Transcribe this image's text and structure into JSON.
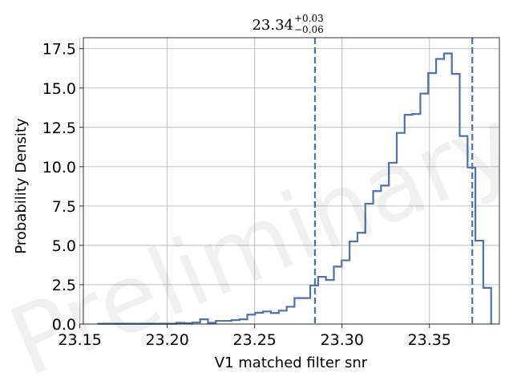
{
  "chart_data": {
    "type": "histogram",
    "title": {
      "value": "23.34",
      "upper": "+0.03",
      "lower": "−0.06"
    },
    "xlabel": "V1 matched filter snr",
    "ylabel": "Probability Density",
    "xlim": [
      23.152,
      23.39
    ],
    "ylim": [
      0,
      18.2
    ],
    "xticks": [
      "23.15",
      "23.20",
      "23.25",
      "23.30",
      "23.35"
    ],
    "yticks": [
      "0.0",
      "2.5",
      "5.0",
      "7.5",
      "10.0",
      "12.5",
      "15.0",
      "17.5"
    ],
    "grid": true,
    "line_color": "#4c72b0",
    "watermark": "Preliminary",
    "vlines": [
      23.2845,
      23.3745
    ],
    "bin_edges": [
      23.1605,
      23.2052,
      23.2098,
      23.2143,
      23.2188,
      23.2233,
      23.2278,
      23.2323,
      23.2368,
      23.2413,
      23.2458,
      23.2503,
      23.2548,
      23.2593,
      23.2638,
      23.2683,
      23.2728,
      23.2773,
      23.2818,
      23.2863,
      23.2908,
      23.2953,
      23.2998,
      23.3043,
      23.3088,
      23.3133,
      23.3178,
      23.3223,
      23.3268,
      23.3313,
      23.3358,
      23.3403,
      23.3448,
      23.3493,
      23.3538,
      23.3583,
      23.3628,
      23.3673,
      23.3718,
      23.3763,
      23.3808,
      23.3853
    ],
    "densities": [
      0.02,
      0.08,
      0.05,
      0.1,
      0.3,
      0.08,
      0.2,
      0.2,
      0.25,
      0.3,
      0.6,
      0.72,
      0.8,
      0.7,
      0.85,
      1.1,
      1.65,
      1.65,
      2.45,
      3.0,
      2.8,
      3.65,
      4.05,
      5.25,
      5.8,
      7.65,
      8.45,
      8.8,
      10.25,
      12.15,
      13.3,
      13.35,
      14.65,
      15.95,
      16.85,
      17.2,
      15.9,
      11.95,
      9.95,
      5.3,
      2.3
    ]
  }
}
